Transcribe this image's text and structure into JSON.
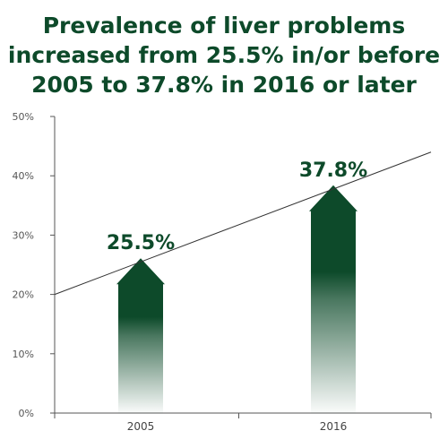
{
  "chart_data": {
    "type": "bar",
    "title_lines": [
      "Prevalence of liver problems",
      "increased from 25.5% in/or before",
      "2005 to 37.8% in 2016 or later"
    ],
    "categories": [
      "2005",
      "2016"
    ],
    "values": [
      25.5,
      37.8
    ],
    "value_labels": [
      "25.5%",
      "37.8%"
    ],
    "ylim": [
      0,
      50
    ],
    "yticks": [
      "0%",
      "10%",
      "20%",
      "30%",
      "40%",
      "50%"
    ],
    "trend_line": {
      "start": 20,
      "end": 44
    },
    "grid": false,
    "bar_color": "#0d4a2a",
    "title_color": "#0d4a2a"
  }
}
